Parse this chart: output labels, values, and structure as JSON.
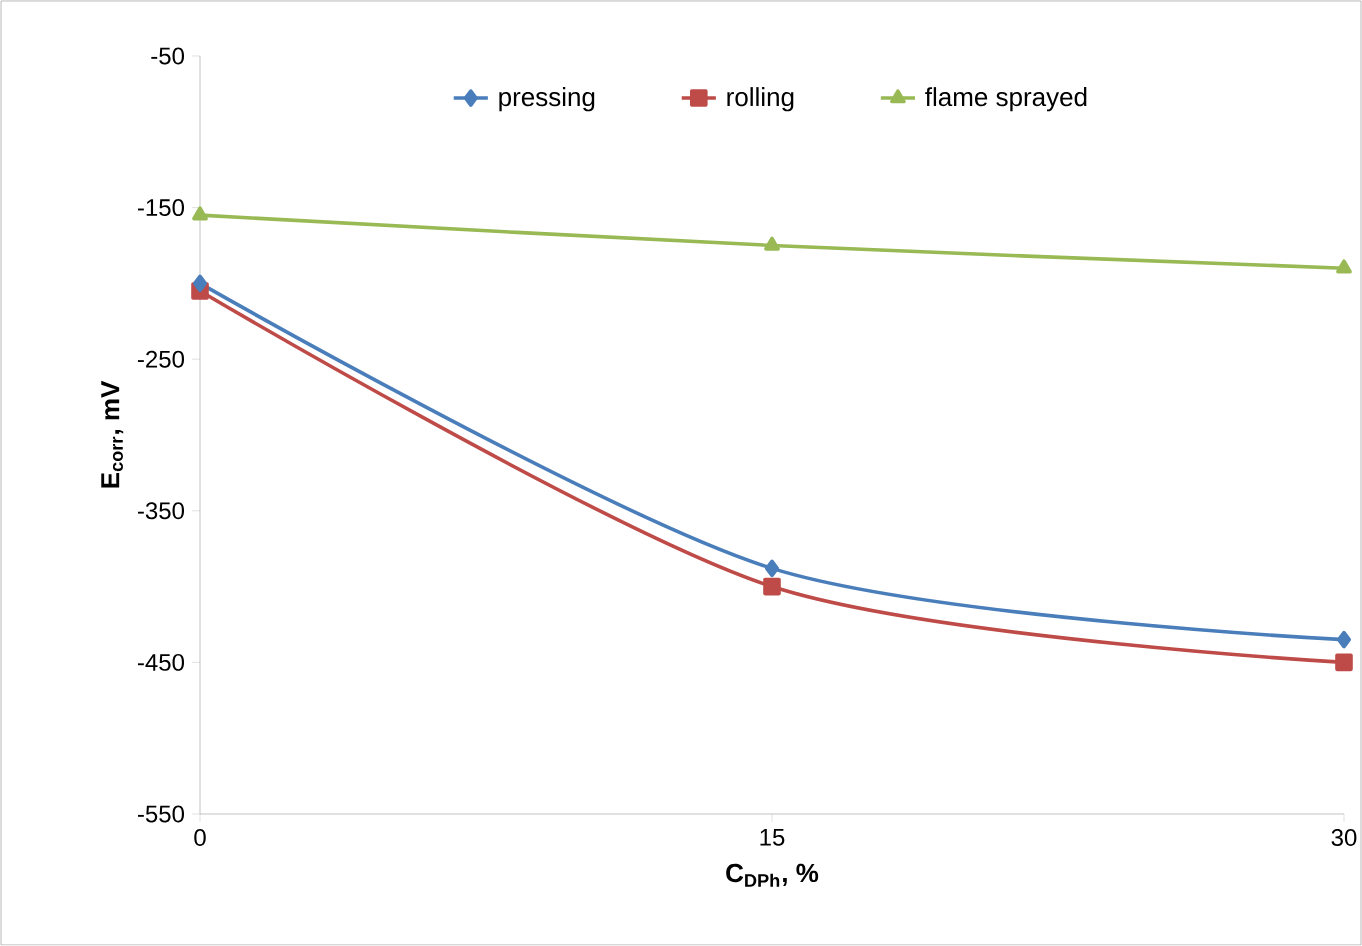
{
  "chart_data": {
    "type": "line",
    "xlabel": "C$_{DPh}$, %",
    "ylabel": "E$_{corr}$, mV",
    "x": [
      0,
      15,
      30
    ],
    "series": [
      {
        "name": "pressing",
        "color": "#4a7ebb",
        "marker": "diamond",
        "values": [
          -200,
          -388,
          -435
        ]
      },
      {
        "name": "rolling",
        "color": "#be4b48",
        "marker": "square",
        "values": [
          -205,
          -400,
          -450
        ]
      },
      {
        "name": "flame sprayed",
        "color": "#98b954",
        "marker": "triangle",
        "values": [
          -155,
          -175,
          -190
        ]
      }
    ],
    "xlim": [
      0,
      30
    ],
    "xticks": [
      0,
      15,
      30
    ],
    "ylim": [
      -550,
      -50
    ],
    "yticks": [
      -550,
      -450,
      -350,
      -250,
      -150,
      -50
    ],
    "grid": false,
    "legend": "top",
    "line_style": "solid"
  }
}
